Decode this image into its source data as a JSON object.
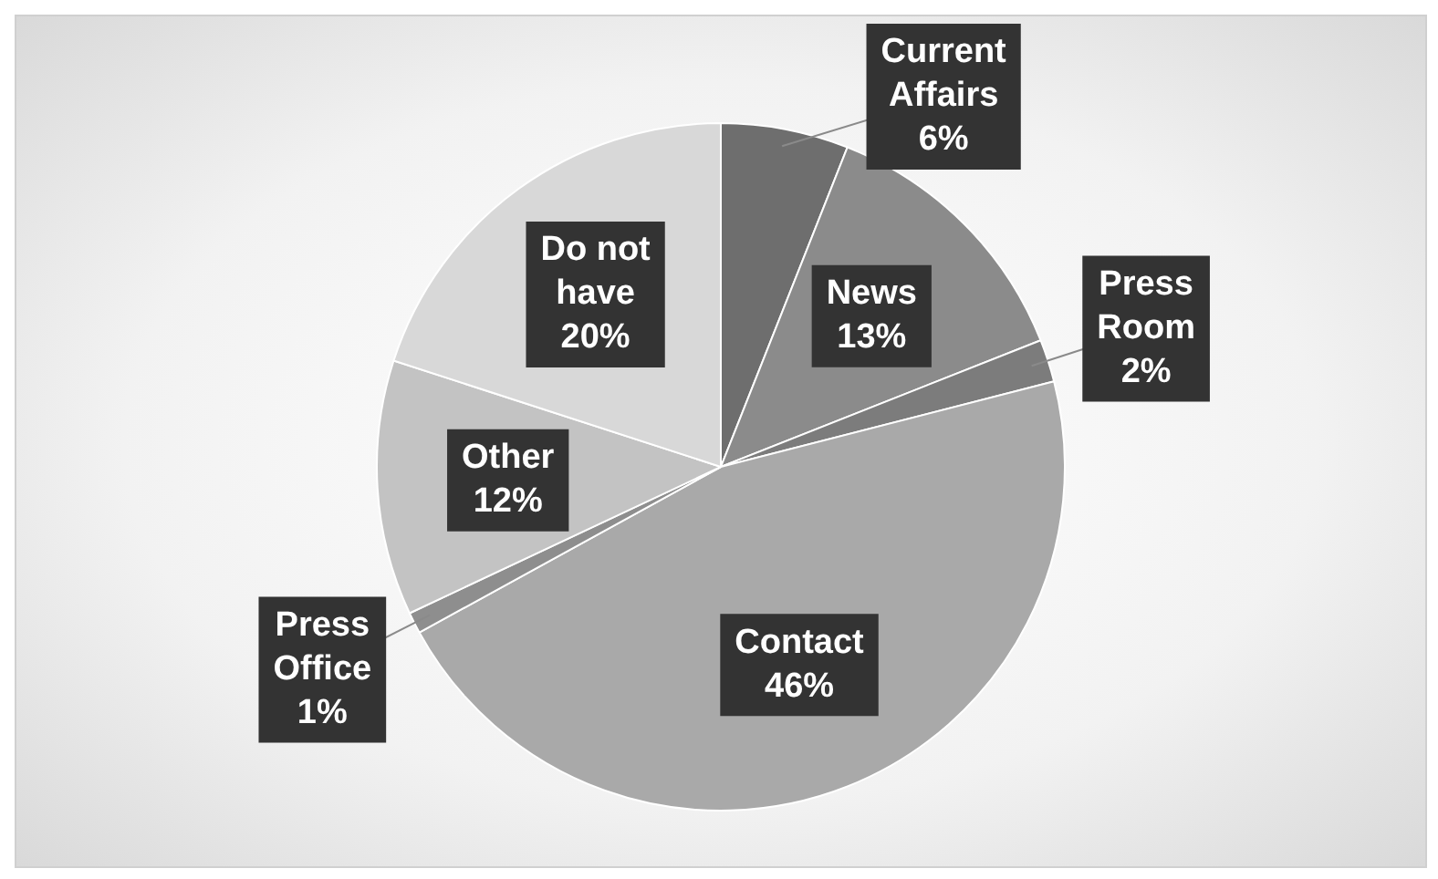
{
  "chart_data": {
    "type": "pie",
    "categories": [
      "Current Affairs",
      "News",
      "Press Room",
      "Contact",
      "Press Office",
      "Other",
      "Do not have"
    ],
    "values": [
      6,
      13,
      2,
      46,
      1,
      12,
      20
    ],
    "value_labels": [
      "6%",
      "13%",
      "2%",
      "46%",
      "1%",
      "12%",
      "20%"
    ],
    "colors": [
      "#6e6e6e",
      "#8b8b8b",
      "#7c7c7c",
      "#a9a9a9",
      "#8e8e8e",
      "#c3c3c3",
      "#d8d8d8"
    ],
    "legend": false
  }
}
